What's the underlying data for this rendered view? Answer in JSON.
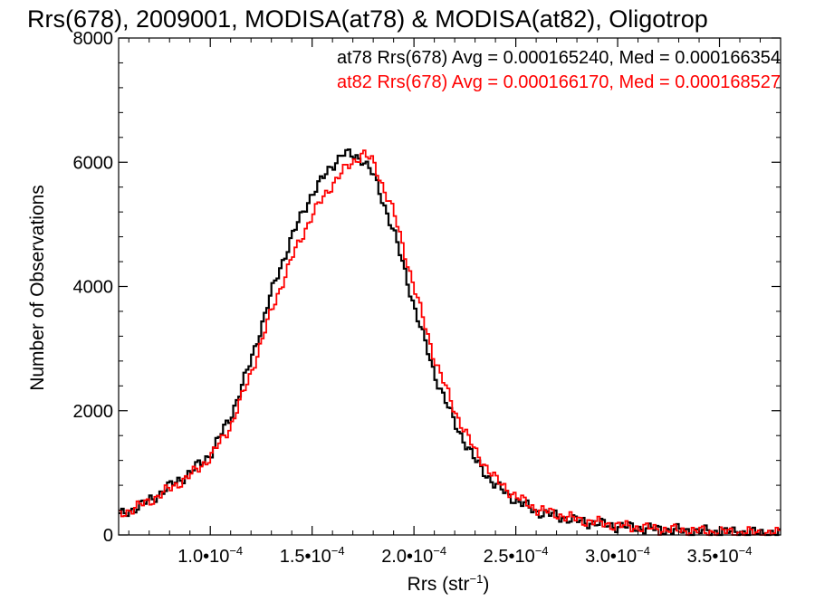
{
  "chart_data": {
    "type": "histogram",
    "title": "Rrs(678), 2009001, MODISA(at78) & MODISA(at82), Oligotrop",
    "xlabel": "Rrs (str",
    "xlabel_sup": "−1",
    "xlabel_close": ")",
    "ylabel": "Number of Observations",
    "xlim": [
      5.5e-05,
      0.00038
    ],
    "ylim": [
      0,
      8000
    ],
    "x_ticks": [
      {
        "value": 0.0001,
        "mantissa": "1.0•10",
        "exp": "−4"
      },
      {
        "value": 0.00015,
        "mantissa": "1.5•10",
        "exp": "−4"
      },
      {
        "value": 0.0002,
        "mantissa": "2.0•10",
        "exp": "−4"
      },
      {
        "value": 0.00025,
        "mantissa": "2.5•10",
        "exp": "−4"
      },
      {
        "value": 0.0003,
        "mantissa": "3.0•10",
        "exp": "−4"
      },
      {
        "value": 0.00035,
        "mantissa": "3.5•10",
        "exp": "−4"
      }
    ],
    "y_ticks": [
      0,
      2000,
      4000,
      6000,
      8000
    ],
    "annotations": [
      {
        "text": "at78 Rrs(678) Avg = 0.000165240, Med = 0.000166354",
        "color": "#000000"
      },
      {
        "text": "at82 Rrs(678) Avg = 0.000166170, Med = 0.000168527",
        "color": "#ff0000"
      }
    ],
    "series": [
      {
        "color": "#000000",
        "x": [
          5.5e-05,
          7e-05,
          8e-05,
          9e-05,
          0.0001,
          0.00011,
          0.00012,
          0.00013,
          0.00014,
          0.00015,
          0.00016,
          0.000165,
          0.00017,
          0.000175,
          0.00018,
          0.00019,
          0.0002,
          0.00021,
          0.00022,
          0.00023,
          0.00024,
          0.00025,
          0.00026,
          0.00028,
          0.0003,
          0.00032,
          0.00034,
          0.00036,
          0.00038
        ],
        "y": [
          300,
          550,
          780,
          1000,
          1300,
          1900,
          2800,
          3900,
          4800,
          5500,
          5950,
          6150,
          6100,
          6050,
          5800,
          4900,
          3700,
          2600,
          1800,
          1200,
          800,
          560,
          380,
          230,
          140,
          90,
          60,
          40,
          25
        ]
      },
      {
        "color": "#ff0000",
        "x": [
          5.5e-05,
          7e-05,
          8e-05,
          9e-05,
          0.0001,
          0.00011,
          0.00012,
          0.00013,
          0.00014,
          0.00015,
          0.00016,
          0.000165,
          0.00017,
          0.000175,
          0.00018,
          0.00019,
          0.0002,
          0.00021,
          0.00022,
          0.00023,
          0.00024,
          0.00025,
          0.00026,
          0.00028,
          0.0003,
          0.00032,
          0.00034,
          0.00036,
          0.00038
        ],
        "y": [
          320,
          540,
          740,
          950,
          1250,
          1750,
          2600,
          3600,
          4450,
          5150,
          5650,
          5850,
          6000,
          6150,
          6000,
          5200,
          4000,
          2850,
          2000,
          1350,
          900,
          620,
          420,
          250,
          150,
          95,
          60,
          40,
          25
        ]
      }
    ]
  }
}
